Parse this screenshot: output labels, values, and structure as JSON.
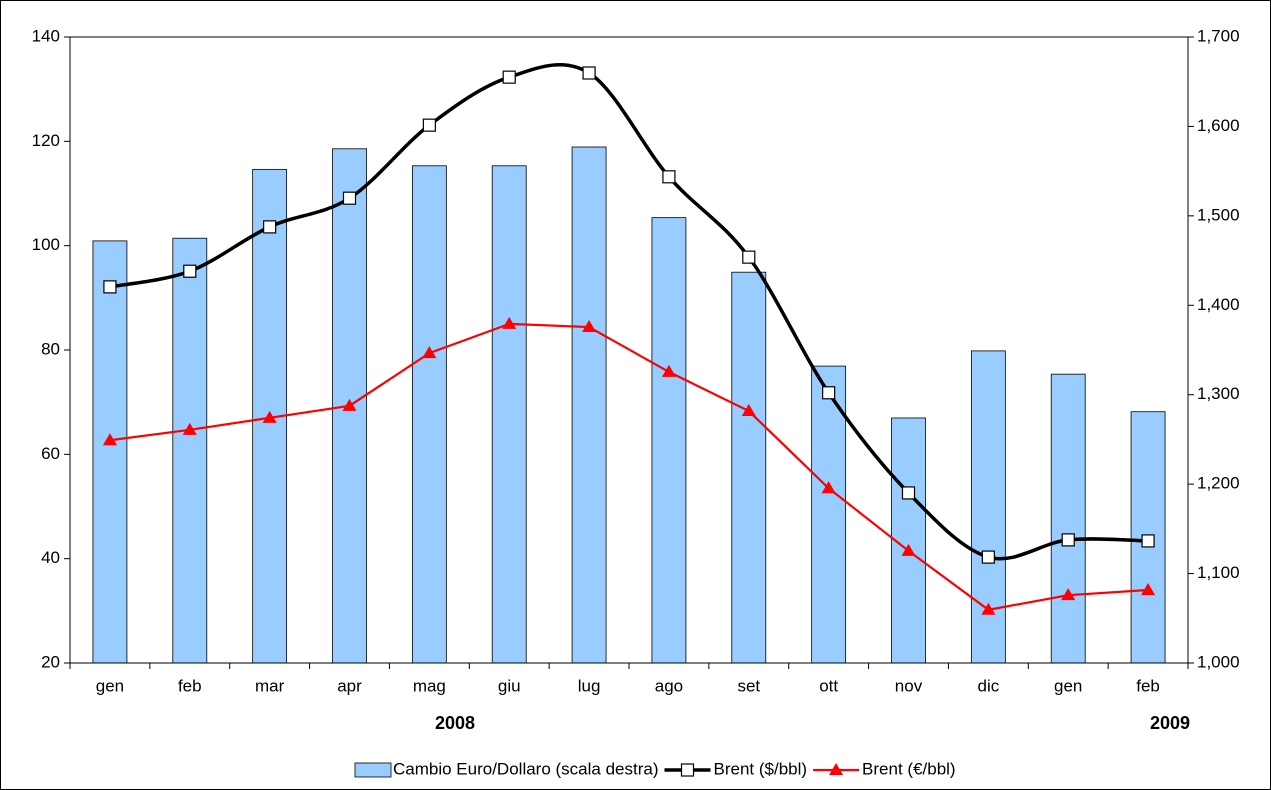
{
  "chart_data": {
    "type": "bar-line",
    "categories": [
      "gen",
      "feb",
      "mar",
      "apr",
      "mag",
      "giu",
      "lug",
      "ago",
      "set",
      "ott",
      "nov",
      "dic",
      "gen",
      "feb"
    ],
    "year_labels": [
      "2008",
      "2009"
    ],
    "series": [
      {
        "name": "Cambio Euro/Dollaro (scala destra)",
        "type": "bar",
        "axis": "y2",
        "color": "#99ccff",
        "values": [
          1472,
          1475,
          1552,
          1575,
          1556,
          1556,
          1577,
          1498,
          1437,
          1332,
          1274,
          1349,
          1323,
          1281
        ]
      },
      {
        "name": "Brent ($/bbl)",
        "type": "line",
        "smooth": true,
        "marker": "square",
        "color": "#000000",
        "values": [
          92.1,
          95.1,
          103.6,
          109.1,
          123.1,
          132.3,
          133.1,
          113.2,
          97.8,
          71.8,
          52.6,
          40.3,
          43.6,
          43.4
        ]
      },
      {
        "name": "Brent (€/bbl)",
        "type": "line",
        "smooth": false,
        "marker": "triangle",
        "color": "#ff0000",
        "values": [
          62.7,
          64.7,
          67,
          69.3,
          79.4,
          85,
          84.4,
          75.8,
          68.3,
          53.5,
          41.5,
          30.2,
          33,
          34
        ]
      }
    ],
    "ylim": [
      20,
      140
    ],
    "yticks": [
      20,
      40,
      60,
      80,
      100,
      120,
      140
    ],
    "y2lim": [
      1000,
      1700
    ],
    "y2ticks": [
      {
        "value": 1000,
        "label": "1,000"
      },
      {
        "value": 1100,
        "label": "1,100"
      },
      {
        "value": 1200,
        "label": "1,200"
      },
      {
        "value": 1300,
        "label": "1,300"
      },
      {
        "value": 1400,
        "label": "1,400"
      },
      {
        "value": 1500,
        "label": "1,500"
      },
      {
        "value": 1600,
        "label": "1,600"
      },
      {
        "value": 1700,
        "label": "1,700"
      }
    ],
    "legend": "bottom"
  }
}
